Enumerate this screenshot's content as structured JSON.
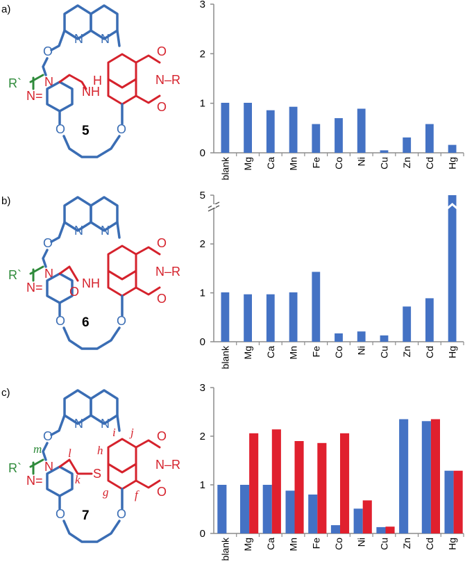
{
  "panels": [
    {
      "label": "a)",
      "compound": "5",
      "linker": "amine"
    },
    {
      "label": "b)",
      "compound": "6",
      "linker": "amide"
    },
    {
      "label": "c)",
      "compound": "7",
      "linker": "thioether",
      "proton_labels": [
        "i",
        "j",
        "h",
        "m",
        "l",
        "k",
        "g",
        "f"
      ]
    }
  ],
  "atom_labels": {
    "N": "N",
    "O": "O",
    "H": "H",
    "S": "S",
    "NH": "NH",
    "NR": "N–R",
    "Rp": "R`"
  },
  "colors": {
    "blue": "#3a6db4",
    "red": "#d5222c",
    "green": "#2e8a3a",
    "bar_blue": "#4472c4",
    "bar_red": "#e0202e",
    "axis": "#8c8c8c"
  },
  "chart_data": [
    {
      "type": "bar",
      "categories": [
        "blank",
        "Mg",
        "Ca",
        "Mn",
        "Fe",
        "Co",
        "Ni",
        "Cu",
        "Zn",
        "Cd",
        "Hg"
      ],
      "series": [
        {
          "values": [
            1.01,
            1.01,
            0.86,
            0.93,
            0.58,
            0.7,
            0.89,
            0.05,
            0.31,
            0.58,
            0.16
          ]
        }
      ],
      "ylim": [
        0,
        3
      ],
      "yticks": [
        "0",
        "1",
        "2",
        "3"
      ]
    },
    {
      "type": "bar",
      "categories": [
        "blank",
        "Mg",
        "Ca",
        "Mn",
        "Fe",
        "Co",
        "Ni",
        "Cu",
        "Zn",
        "Cd",
        "Hg"
      ],
      "series": [
        {
          "values": [
            1.01,
            0.97,
            0.97,
            1.01,
            1.43,
            0.17,
            0.21,
            0.13,
            0.72,
            0.89,
            5.0
          ]
        }
      ],
      "ylim": [
        0,
        5
      ],
      "axis_break": [
        2.6,
        4.9
      ],
      "yticks": [
        "0",
        "1",
        "2",
        "5"
      ]
    },
    {
      "type": "bar",
      "categories": [
        "blank",
        "Mg",
        "Ca",
        "Mn",
        "Fe",
        "Co",
        "Ni",
        "Cu",
        "Zn",
        "Cd",
        "Hg"
      ],
      "series": [
        {
          "values": [
            1.0,
            1.0,
            1.0,
            0.88,
            0.8,
            0.17,
            0.51,
            0.13,
            2.35,
            2.31,
            1.29
          ]
        },
        {
          "values": [
            null,
            2.06,
            2.14,
            1.9,
            1.86,
            2.06,
            0.68,
            0.14,
            null,
            2.35,
            1.29
          ]
        }
      ],
      "ylim": [
        0,
        3
      ],
      "yticks": [
        "0",
        "1",
        "2",
        "3"
      ]
    }
  ]
}
